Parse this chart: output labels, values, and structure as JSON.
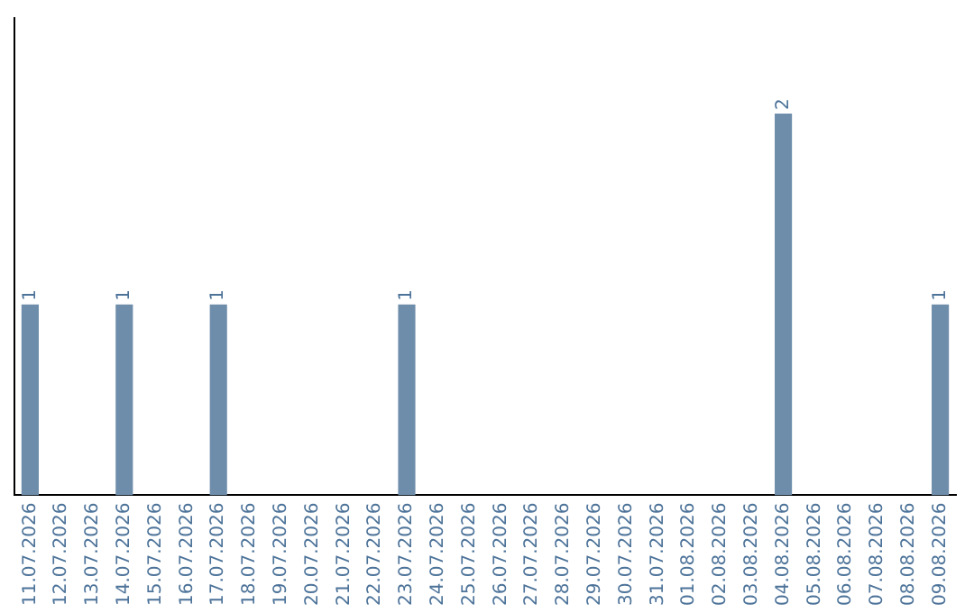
{
  "chart_data": {
    "type": "bar",
    "categories": [
      "11.07.2026",
      "12.07.2026",
      "13.07.2026",
      "14.07.2026",
      "15.07.2026",
      "16.07.2026",
      "17.07.2026",
      "18.07.2026",
      "19.07.2026",
      "20.07.2026",
      "21.07.2026",
      "22.07.2026",
      "23.07.2026",
      "24.07.2026",
      "25.07.2026",
      "26.07.2026",
      "27.07.2026",
      "28.07.2026",
      "29.07.2026",
      "30.07.2026",
      "31.07.2026",
      "01.08.2026",
      "02.08.2026",
      "03.08.2026",
      "04.08.2026",
      "05.08.2026",
      "06.08.2026",
      "07.08.2026",
      "08.08.2026",
      "09.08.2026"
    ],
    "values": [
      1,
      0,
      0,
      1,
      0,
      0,
      1,
      0,
      0,
      0,
      0,
      0,
      1,
      0,
      0,
      0,
      0,
      0,
      0,
      0,
      0,
      0,
      0,
      0,
      2,
      0,
      0,
      0,
      0,
      1
    ],
    "value_labels": [
      "1",
      null,
      null,
      "1",
      null,
      null,
      "1",
      null,
      null,
      null,
      null,
      null,
      "1",
      null,
      null,
      null,
      null,
      null,
      null,
      null,
      null,
      null,
      null,
      null,
      "2",
      null,
      null,
      null,
      null,
      "1"
    ],
    "color": "#6e8daa",
    "grid": false,
    "legend": false
  }
}
